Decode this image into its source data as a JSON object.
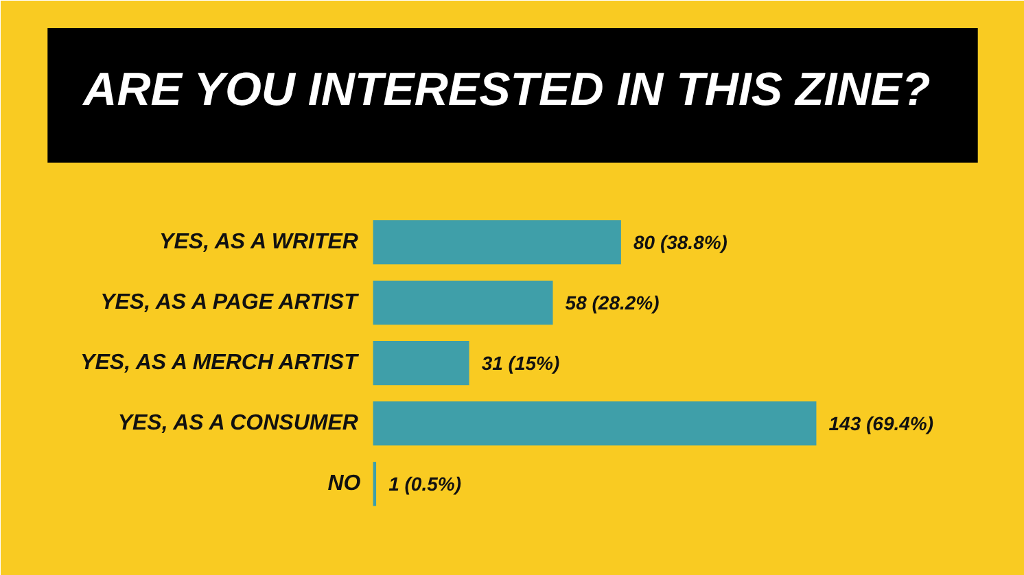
{
  "chart_data": {
    "type": "bar",
    "orientation": "horizontal",
    "title": "ARE YOU INTERESTED IN THIS ZINE?",
    "categories": [
      "YES, AS A WRITER",
      "YES, AS A PAGE ARTIST",
      "YES, AS A MERCH ARTIST",
      "YES, AS A CONSUMER",
      "NO"
    ],
    "values": [
      80,
      58,
      31,
      143,
      1
    ],
    "color": "#3f9fa9",
    "value_labels": [
      "80 (38.8%)",
      "58 (28.2%)",
      "31 (15%)",
      "143 (69.4%)",
      "1 (0.5%)"
    ],
    "tick_labels": "y"
  }
}
